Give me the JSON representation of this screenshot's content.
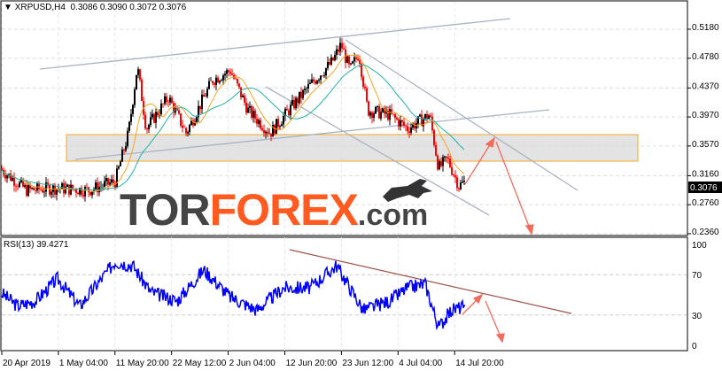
{
  "header": {
    "symbol": "XRPUSD,H4",
    "ohlc": "0.3086 0.3090 0.3072 0.3076",
    "rsi_label": "RSI(13) 39.4271"
  },
  "watermark": {
    "part1": "TOR",
    "part2": "FOREX",
    "part3": ".com"
  },
  "colors": {
    "bull": "#000000",
    "bear": "#ff0000",
    "ma_fast": "#f5a623",
    "ma_slow": "#20b2aa",
    "rsi": "#0000ff",
    "trendline": "#a9b4c2",
    "arrow": "#f26b5b",
    "rsi_trend": "#a0524a",
    "zone": "#d9d9d9",
    "zone_border": "#f5a623"
  },
  "chart_data": [
    {
      "type": "candlestick",
      "title": "XRPUSD,H4",
      "ylim": [
        0.236,
        0.518
      ],
      "y_ticks": [
        "0.5180",
        "0.4780",
        "0.4370",
        "0.3970",
        "0.3570",
        "0.3160",
        "0.2760",
        "0.2360"
      ],
      "current_price": "0.3076",
      "x_ticks": [
        "20 Apr 2019",
        "1 May 04:00",
        "11 May 20:00",
        "22 May 12:00",
        "2 Jun 04:00",
        "12 Jun 20:00",
        "23 Jun 12:00",
        "4 Jul 04:00",
        "14 Jul 20:00"
      ],
      "close_path": [
        [
          0,
          0.326
        ],
        [
          30,
          0.296
        ],
        [
          60,
          0.299
        ],
        [
          100,
          0.296
        ],
        [
          130,
          0.308
        ],
        [
          145,
          0.375
        ],
        [
          155,
          0.467
        ],
        [
          165,
          0.381
        ],
        [
          190,
          0.424
        ],
        [
          210,
          0.375
        ],
        [
          240,
          0.448
        ],
        [
          260,
          0.461
        ],
        [
          280,
          0.406
        ],
        [
          305,
          0.375
        ],
        [
          330,
          0.412
        ],
        [
          355,
          0.448
        ],
        [
          375,
          0.473
        ],
        [
          385,
          0.497
        ],
        [
          395,
          0.461
        ],
        [
          405,
          0.485
        ],
        [
          415,
          0.406
        ],
        [
          440,
          0.4
        ],
        [
          460,
          0.381
        ],
        [
          485,
          0.4
        ],
        [
          495,
          0.326
        ],
        [
          505,
          0.339
        ],
        [
          518,
          0.302
        ],
        [
          525,
          0.3076
        ]
      ]
    },
    {
      "type": "line",
      "title": "RSI(13)",
      "ylim": [
        0,
        100
      ],
      "y_ticks": [
        "100",
        "70",
        "30",
        "0"
      ],
      "current": 39.4271,
      "values": [
        [
          0,
          53
        ],
        [
          20,
          39
        ],
        [
          40,
          44
        ],
        [
          65,
          66
        ],
        [
          90,
          39
        ],
        [
          130,
          83
        ],
        [
          150,
          79
        ],
        [
          170,
          53
        ],
        [
          200,
          44
        ],
        [
          230,
          75
        ],
        [
          260,
          48
        ],
        [
          290,
          35
        ],
        [
          320,
          57
        ],
        [
          350,
          57
        ],
        [
          380,
          79
        ],
        [
          410,
          35
        ],
        [
          440,
          44
        ],
        [
          460,
          57
        ],
        [
          480,
          61
        ],
        [
          495,
          18
        ],
        [
          510,
          35
        ],
        [
          525,
          39
        ]
      ]
    }
  ]
}
